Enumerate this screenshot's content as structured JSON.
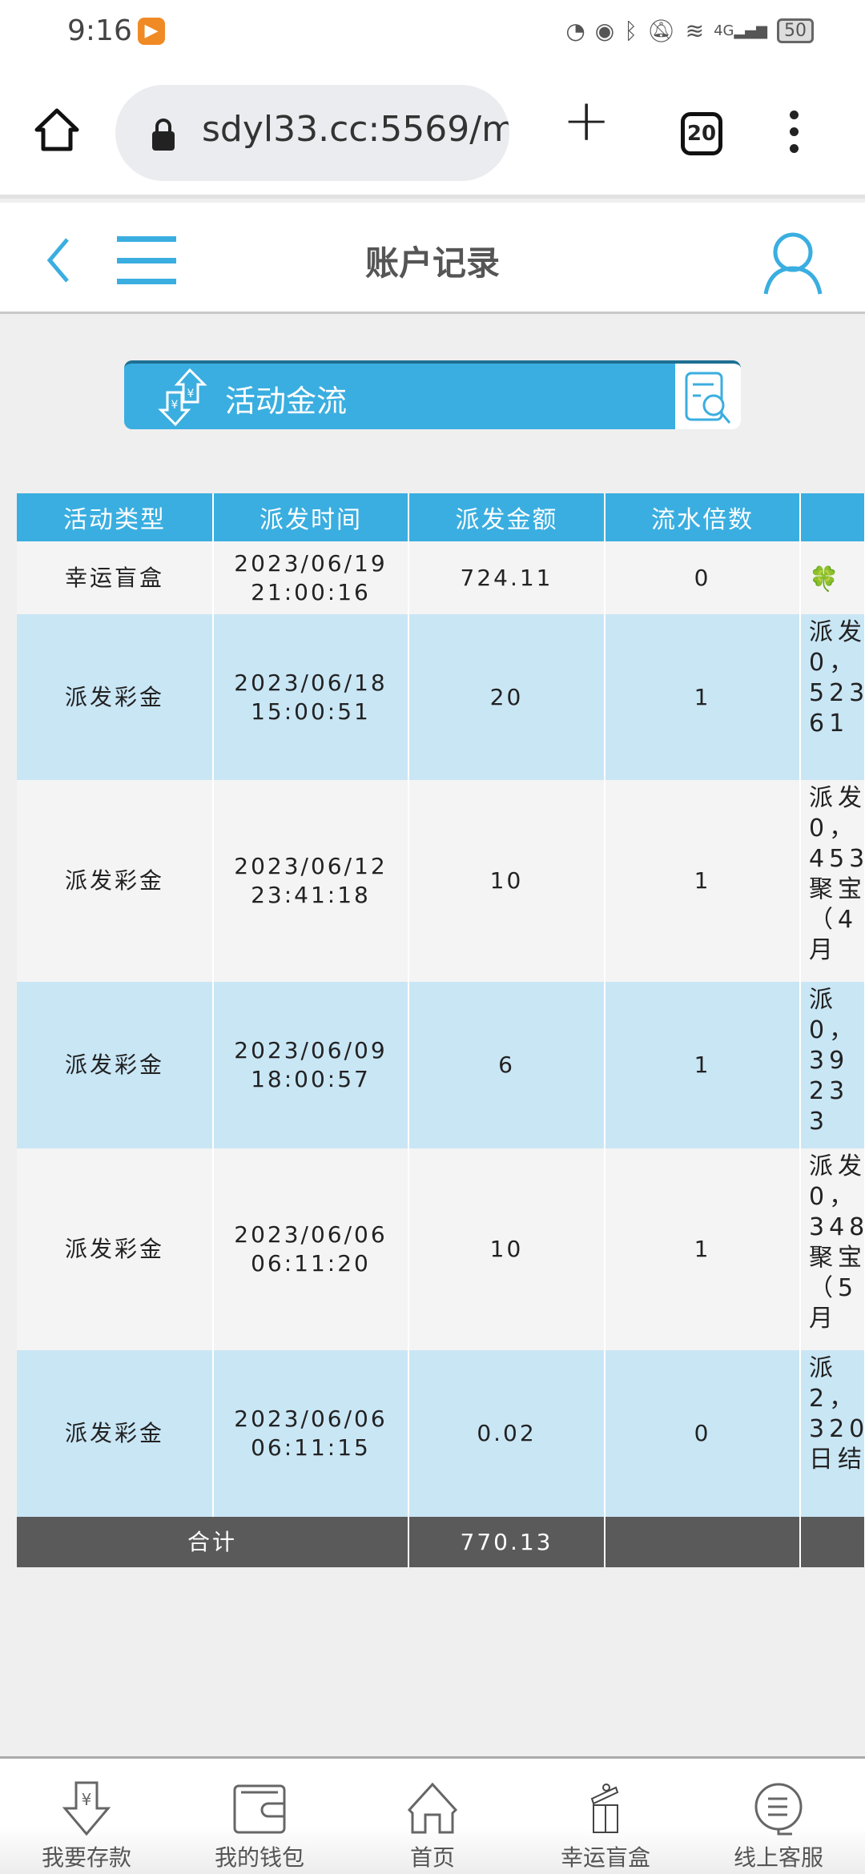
{
  "status_bar": {
    "time": "9:16",
    "battery": "50",
    "network": "4G"
  },
  "browser": {
    "url": "sdyl33.cc:5569/m",
    "tab_count": "20"
  },
  "header": {
    "title": "账户记录"
  },
  "banner": {
    "label": "活动金流"
  },
  "table": {
    "columns": [
      "活动类型",
      "派发时间",
      "派发金额",
      "流水倍数",
      ""
    ],
    "rows": [
      {
        "type": "幸运盲盒",
        "date": "2023/06/19",
        "time": "21:00:16",
        "amount": "724.11",
        "multiplier": "0",
        "note": [
          "🍀"
        ]
      },
      {
        "type": "派发彩金",
        "date": "2023/06/18",
        "time": "15:00:51",
        "amount": "20",
        "multiplier": "1",
        "note": [
          "派发",
          "0，",
          "523",
          "61"
        ]
      },
      {
        "type": "派发彩金",
        "date": "2023/06/12",
        "time": "23:41:18",
        "amount": "10",
        "multiplier": "1",
        "note": [
          "派发",
          "0，",
          "453",
          "聚宝",
          "（4",
          "月"
        ]
      },
      {
        "type": "派发彩金",
        "date": "2023/06/09",
        "time": "18:00:57",
        "amount": "6",
        "multiplier": "1",
        "note": [
          "派",
          "0，",
          "39",
          "23",
          "3"
        ]
      },
      {
        "type": "派发彩金",
        "date": "2023/06/06",
        "time": "06:11:20",
        "amount": "10",
        "multiplier": "1",
        "note": [
          "派发",
          "0，",
          "348",
          "聚宝",
          "（5",
          "月"
        ]
      },
      {
        "type": "派发彩金",
        "date": "2023/06/06",
        "time": "06:11:15",
        "amount": "0.02",
        "multiplier": "0",
        "note": [
          "派",
          "2，",
          "320",
          "日结"
        ]
      }
    ],
    "total": {
      "label": "合计",
      "amount": "770.13"
    }
  },
  "bottom_nav": [
    {
      "label": "我要存款",
      "icon": "deposit-icon"
    },
    {
      "label": "我的钱包",
      "icon": "wallet-icon"
    },
    {
      "label": "首页",
      "icon": "home-icon"
    },
    {
      "label": "幸运盲盒",
      "icon": "gift-icon"
    },
    {
      "label": "线上客服",
      "icon": "support-icon"
    }
  ],
  "colors": {
    "accent": "#3aaee0",
    "row_alt": "#c9e6f5",
    "total_bg": "#5a5a5a"
  }
}
